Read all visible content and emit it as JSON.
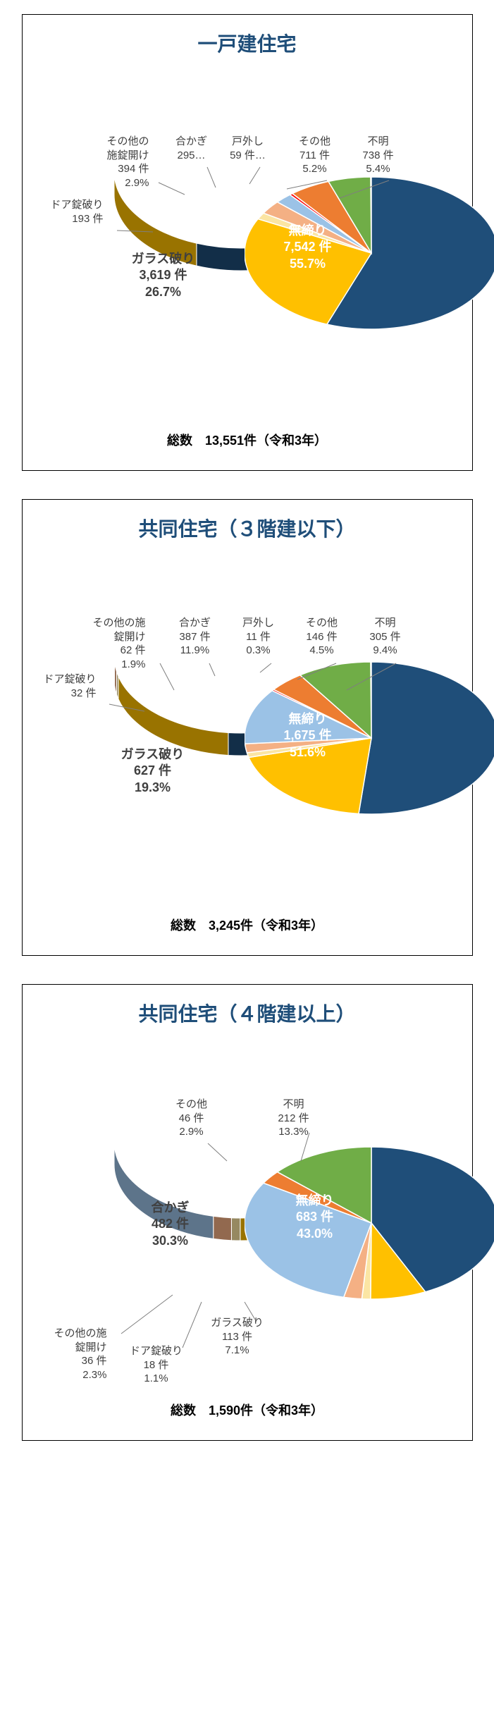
{
  "colors": {
    "title": "#1f4e79",
    "mujimari": "#1f4e79",
    "glass": "#ffc000",
    "door_lock": "#fbe5a3",
    "other_lock": "#f4b084",
    "aikagi": "#9bc2e6",
    "tohazushi": "#ff0000",
    "sonota": "#ed7d31",
    "fumei": "#70ad47",
    "leader": "#7f7f7f",
    "border": "#000000",
    "background": "#ffffff"
  },
  "charts": [
    {
      "id": "house",
      "title": "一戸建住宅",
      "total_label": "総数　13,551件（令和3年）",
      "slices": [
        {
          "key": "mujimari",
          "name": "無締り",
          "count": "7,542 件",
          "pct": 55.7,
          "pct_label": "55.7%",
          "color": "#1f4e79",
          "on_pie": true,
          "stack": 3
        },
        {
          "key": "glass",
          "name": "ガラス破り",
          "count": "3,619 件",
          "pct": 26.7,
          "pct_label": "26.7%",
          "color": "#ffc000",
          "on_pie": true,
          "on_dark": false,
          "stack": 3
        },
        {
          "key": "door_lock",
          "name": "ドア錠破り",
          "count": "193 件",
          "pct": 1.4,
          "pct_label": "1.4%",
          "color": "#fbe5a3",
          "stack": 2
        },
        {
          "key": "other_lock",
          "name": "その他の\n施錠開け",
          "count": "394 件",
          "pct": 2.9,
          "pct_label": "2.9%",
          "color": "#f4b084",
          "stack": 3
        },
        {
          "key": "aikagi",
          "name": "合かぎ",
          "count": "295…",
          "pct": 2.2,
          "pct_label": "",
          "color": "#9bc2e6",
          "stack": 2
        },
        {
          "key": "tohazushi",
          "name": "戸外し",
          "count": "59 件…",
          "pct": 0.4,
          "pct_label": "",
          "color": "#ff0000",
          "stack": 2
        },
        {
          "key": "sonota",
          "name": "その他",
          "count": "711 件",
          "pct": 5.2,
          "pct_label": "5.2%",
          "color": "#ed7d31",
          "stack": 3
        },
        {
          "key": "fumei",
          "name": "不明",
          "count": "738 件",
          "pct": 5.4,
          "pct_label": "5.4%",
          "color": "#70ad47",
          "stack": 3
        }
      ]
    },
    {
      "id": "apt3",
      "title": "共同住宅（３階建以下）",
      "total_label": "総数　3,245件（令和3年）",
      "slices": [
        {
          "key": "mujimari",
          "name": "無締り",
          "count": "1,675 件",
          "pct": 51.6,
          "pct_label": "51.6%",
          "color": "#1f4e79",
          "on_pie": true,
          "stack": 3
        },
        {
          "key": "glass",
          "name": "ガラス破り",
          "count": "627 件",
          "pct": 19.3,
          "pct_label": "19.3%",
          "color": "#ffc000",
          "on_pie": true,
          "on_dark": false,
          "stack": 3
        },
        {
          "key": "door_lock",
          "name": "ドア錠破り",
          "count": "32 件",
          "pct": 1.0,
          "pct_label": "1.0%",
          "color": "#fbe5a3",
          "stack": 2
        },
        {
          "key": "other_lock",
          "name": "その他の施\n錠開け",
          "count": "62 件",
          "pct": 1.9,
          "pct_label": "1.9%",
          "color": "#f4b084",
          "stack": 3
        },
        {
          "key": "aikagi",
          "name": "合かぎ",
          "count": "387 件",
          "pct": 11.9,
          "pct_label": "11.9%",
          "color": "#9bc2e6",
          "stack": 3
        },
        {
          "key": "tohazushi",
          "name": "戸外し",
          "count": "11 件",
          "pct": 0.3,
          "pct_label": "0.3%",
          "color": "#ff0000",
          "stack": 3
        },
        {
          "key": "sonota",
          "name": "その他",
          "count": "146 件",
          "pct": 4.5,
          "pct_label": "4.5%",
          "color": "#ed7d31",
          "stack": 3
        },
        {
          "key": "fumei",
          "name": "不明",
          "count": "305 件",
          "pct": 9.4,
          "pct_label": "9.4%",
          "color": "#70ad47",
          "stack": 3
        }
      ]
    },
    {
      "id": "apt4",
      "title": "共同住宅（４階建以上）",
      "total_label": "総数　1,590件（令和3年）",
      "slices": [
        {
          "key": "mujimari",
          "name": "無締り",
          "count": "683 件",
          "pct": 43.0,
          "pct_label": "43.0%",
          "color": "#1f4e79",
          "on_pie": true,
          "stack": 3
        },
        {
          "key": "glass",
          "name": "ガラス破り",
          "count": "113 件",
          "pct": 7.1,
          "pct_label": "7.1%",
          "color": "#ffc000",
          "stack": 3
        },
        {
          "key": "door_lock",
          "name": "ドア錠破り",
          "count": "18 件",
          "pct": 1.1,
          "pct_label": "1.1%",
          "color": "#fbe5a3",
          "stack": 3
        },
        {
          "key": "other_lock",
          "name": "その他の施\n錠開け",
          "count": "36 件",
          "pct": 2.3,
          "pct_label": "2.3%",
          "color": "#f4b084",
          "stack": 3
        },
        {
          "key": "aikagi",
          "name": "合かぎ",
          "count": "482 件",
          "pct": 30.3,
          "pct_label": "30.3%",
          "color": "#9bc2e6",
          "on_pie": true,
          "on_dark": false,
          "stack": 3
        },
        {
          "key": "sonota",
          "name": "その他",
          "count": "46 件",
          "pct": 2.9,
          "pct_label": "2.9%",
          "color": "#ed7d31",
          "stack": 3
        },
        {
          "key": "fumei",
          "name": "不明",
          "count": "212 件",
          "pct": 13.3,
          "pct_label": "13.3%",
          "color": "#70ad47",
          "stack": 3
        }
      ]
    }
  ],
  "style": {
    "pie_width": 360,
    "pie_height": 216,
    "pie_depth": 32,
    "label_fontsize": 15,
    "title_fontsize": 28,
    "onpie_fontsize": 18
  }
}
